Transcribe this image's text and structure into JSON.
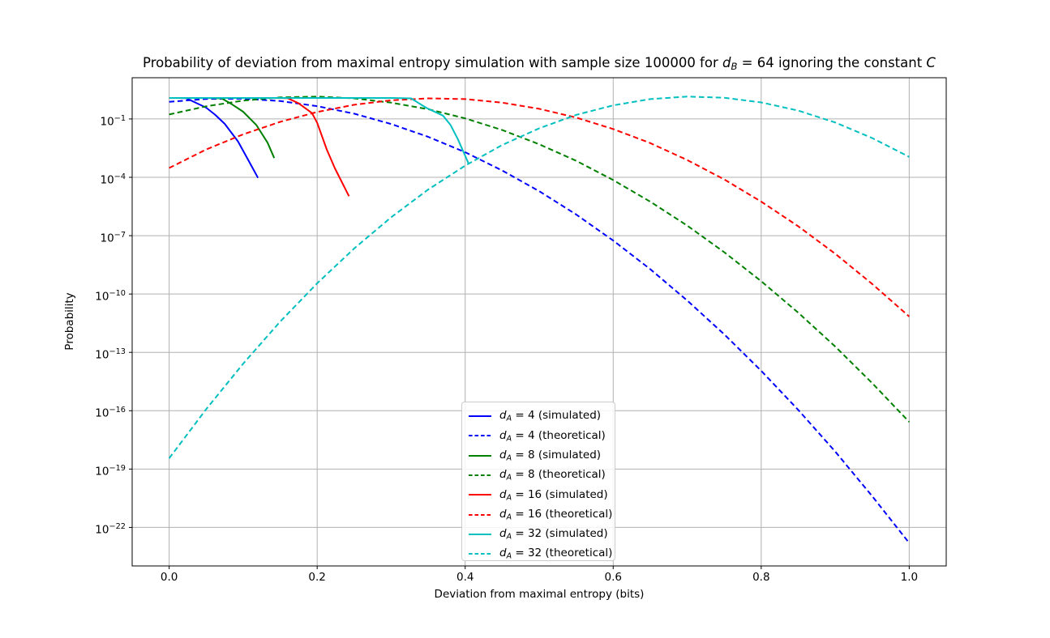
{
  "title": {
    "text": "Probability of deviation from maximal entropy simulation with sample size 100000 for d_B = 64 ignoring the constant C",
    "parts": [
      {
        "t": "Probability of deviation from maximal entropy simulation with sample size 100000 for ",
        "s": "p"
      },
      {
        "t": "d",
        "s": "i"
      },
      {
        "t": "B",
        "s": "is"
      },
      {
        "t": " = 64 ignoring the constant ",
        "s": "p"
      },
      {
        "t": "C",
        "s": "i"
      }
    ]
  },
  "axes": {
    "xlabel": "Deviation from maximal entropy (bits)",
    "ylabel": "Probability",
    "x_ticks": [
      0.0,
      0.2,
      0.4,
      0.6,
      0.8,
      1.0
    ],
    "x_tick_labels": [
      "0.0",
      "0.2",
      "0.4",
      "0.6",
      "0.8",
      "1.0"
    ],
    "y_tick_exponents": [
      -1,
      -4,
      -7,
      -10,
      -13,
      -16,
      -19,
      -22
    ],
    "xlim": [
      -0.05,
      1.05
    ],
    "ylim_log10": [
      -23.98,
      1.12
    ],
    "y_scale": "log",
    "grid": true
  },
  "colors": {
    "grid": "#b0b0b0",
    "spine": "#000000",
    "text": "#000000",
    "legend_border": "#cccccc"
  },
  "chart_data": {
    "type": "line",
    "title": "Probability of deviation from maximal entropy simulation with sample size 100000 for d_B = 64 ignoring the constant C",
    "xlabel": "Deviation from maximal entropy (bits)",
    "ylabel": "Probability",
    "x_range_shown": [
      -0.05,
      1.05
    ],
    "y_log10_range_shown": [
      -23.98,
      1.12
    ],
    "sample_size": 100000,
    "d_B": 64,
    "legend_position": "lower center",
    "points_format": "[deviation_bits, log10_probability]",
    "series": [
      {
        "id": "dA4_simulated",
        "label": "d_A = 4 (simulated)",
        "label_parts": [
          {
            "t": "d",
            "s": "i"
          },
          {
            "t": "A",
            "s": "is"
          },
          {
            "t": " = 4 (simulated)",
            "s": "p"
          }
        ],
        "color": "#0000ff",
        "style": "solid",
        "points": [
          [
            0,
            0.08
          ],
          [
            0.012,
            0.08
          ],
          [
            0.023,
            0.07
          ],
          [
            0.035,
            -0.15
          ],
          [
            0.05,
            -0.42
          ],
          [
            0.062,
            -0.78
          ],
          [
            0.075,
            -1.25
          ],
          [
            0.093,
            -2.15
          ],
          [
            0.107,
            -3.12
          ],
          [
            0.12,
            -4.03
          ]
        ]
      },
      {
        "id": "dA4_theoretical",
        "label": "d_A = 4 (theoretical)",
        "label_parts": [
          {
            "t": "d",
            "s": "i"
          },
          {
            "t": "A",
            "s": "is"
          },
          {
            "t": " = 4 (theoretical)",
            "s": "p"
          }
        ],
        "color": "#0000ff",
        "style": "dashed",
        "points": [
          [
            0,
            -0.12
          ],
          [
            0.05,
            0.03
          ],
          [
            0.1,
            0.04
          ],
          [
            0.15,
            -0.08
          ],
          [
            0.2,
            -0.34
          ],
          [
            0.25,
            -0.73
          ],
          [
            0.3,
            -1.26
          ],
          [
            0.35,
            -1.92
          ],
          [
            0.4,
            -2.71
          ],
          [
            0.45,
            -3.65
          ],
          [
            0.5,
            -4.71
          ],
          [
            0.55,
            -5.91
          ],
          [
            0.6,
            -7.25
          ],
          [
            0.65,
            -8.72
          ],
          [
            0.7,
            -10.33
          ],
          [
            0.75,
            -12.07
          ],
          [
            0.8,
            -13.95
          ],
          [
            0.85,
            -15.96
          ],
          [
            0.9,
            -18.1
          ],
          [
            0.95,
            -20.39
          ],
          [
            1.0,
            -22.8
          ]
        ]
      },
      {
        "id": "dA8_simulated",
        "label": "d_A = 8 (simulated)",
        "label_parts": [
          {
            "t": "d",
            "s": "i"
          },
          {
            "t": "A",
            "s": "is"
          },
          {
            "t": " = 8 (simulated)",
            "s": "p"
          }
        ],
        "color": "#008000",
        "style": "solid",
        "points": [
          [
            0,
            0.08
          ],
          [
            0.05,
            0.08
          ],
          [
            0.071,
            0.06
          ],
          [
            0.085,
            -0.25
          ],
          [
            0.1,
            -0.63
          ],
          [
            0.118,
            -1.32
          ],
          [
            0.133,
            -2.22
          ],
          [
            0.142,
            -3.01
          ]
        ]
      },
      {
        "id": "dA8_theoretical",
        "label": "d_A = 8 (theoretical)",
        "label_parts": [
          {
            "t": "d",
            "s": "i"
          },
          {
            "t": "A",
            "s": "is"
          },
          {
            "t": " = 8 (theoretical)",
            "s": "p"
          }
        ],
        "color": "#008000",
        "style": "dashed",
        "points": [
          [
            0,
            -0.77
          ],
          [
            0.05,
            -0.35
          ],
          [
            0.1,
            -0.06
          ],
          [
            0.15,
            0.11
          ],
          [
            0.2,
            0.15
          ],
          [
            0.25,
            0.06
          ],
          [
            0.3,
            -0.16
          ],
          [
            0.35,
            -0.5
          ],
          [
            0.4,
            -0.97
          ],
          [
            0.45,
            -1.57
          ],
          [
            0.5,
            -2.3
          ],
          [
            0.55,
            -3.15
          ],
          [
            0.6,
            -4.14
          ],
          [
            0.65,
            -5.25
          ],
          [
            0.7,
            -6.48
          ],
          [
            0.75,
            -7.85
          ],
          [
            0.8,
            -9.34
          ],
          [
            0.85,
            -10.96
          ],
          [
            0.9,
            -12.7
          ],
          [
            0.95,
            -14.58
          ],
          [
            1.0,
            -16.58
          ]
        ]
      },
      {
        "id": "dA16_simulated",
        "label": "d_A = 16 (simulated)",
        "label_parts": [
          {
            "t": "d",
            "s": "i"
          },
          {
            "t": "A",
            "s": "is"
          },
          {
            "t": " = 16 (simulated)",
            "s": "p"
          }
        ],
        "color": "#ff0000",
        "style": "solid",
        "points": [
          [
            0,
            0.08
          ],
          [
            0.14,
            0.08
          ],
          [
            0.16,
            0.07
          ],
          [
            0.175,
            -0.2
          ],
          [
            0.193,
            -0.7
          ],
          [
            0.2,
            -1.2
          ],
          [
            0.213,
            -2.57
          ],
          [
            0.224,
            -3.54
          ],
          [
            0.243,
            -4.97
          ]
        ]
      },
      {
        "id": "dA16_theoretical",
        "label": "d_A = 16 (theoretical)",
        "label_parts": [
          {
            "t": "d",
            "s": "i"
          },
          {
            "t": "A",
            "s": "is"
          },
          {
            "t": " = 16 (theoretical)",
            "s": "p"
          }
        ],
        "color": "#ff0000",
        "style": "dashed",
        "points": [
          [
            0,
            -3.52
          ],
          [
            0.05,
            -2.57
          ],
          [
            0.1,
            -1.79
          ],
          [
            0.15,
            -1.15
          ],
          [
            0.2,
            -0.64
          ],
          [
            0.25,
            -0.27
          ],
          [
            0.3,
            -0.04
          ],
          [
            0.35,
            0.06
          ],
          [
            0.4,
            0.02
          ],
          [
            0.45,
            -0.16
          ],
          [
            0.5,
            -0.48
          ],
          [
            0.55,
            -0.93
          ],
          [
            0.6,
            -1.52
          ],
          [
            0.65,
            -2.24
          ],
          [
            0.7,
            -3.11
          ],
          [
            0.75,
            -4.11
          ],
          [
            0.8,
            -5.25
          ],
          [
            0.85,
            -6.52
          ],
          [
            0.9,
            -7.93
          ],
          [
            0.95,
            -9.48
          ],
          [
            1.0,
            -11.16
          ]
        ]
      },
      {
        "id": "dA32_simulated",
        "label": "d_A = 32 (simulated)",
        "label_parts": [
          {
            "t": "d",
            "s": "i"
          },
          {
            "t": "A",
            "s": "is"
          },
          {
            "t": " = 32 (simulated)",
            "s": "p"
          }
        ],
        "color": "#00bfbf",
        "style": "solid",
        "points": [
          [
            0,
            0.08
          ],
          [
            0.3,
            0.08
          ],
          [
            0.327,
            0.06
          ],
          [
            0.347,
            -0.42
          ],
          [
            0.37,
            -0.83
          ],
          [
            0.38,
            -1.3
          ],
          [
            0.39,
            -2.03
          ],
          [
            0.405,
            -3.33
          ]
        ]
      },
      {
        "id": "dA32_theoretical",
        "label": "d_A = 32 (theoretical)",
        "label_parts": [
          {
            "t": "d",
            "s": "i"
          },
          {
            "t": "A",
            "s": "is"
          },
          {
            "t": " = 32 (theoretical)",
            "s": "p"
          }
        ],
        "color": "#00bfbf",
        "style": "dashed",
        "points": [
          [
            0,
            -18.45
          ],
          [
            0.05,
            -15.92
          ],
          [
            0.1,
            -13.58
          ],
          [
            0.15,
            -11.42
          ],
          [
            0.2,
            -9.45
          ],
          [
            0.25,
            -7.66
          ],
          [
            0.3,
            -6.05
          ],
          [
            0.35,
            -4.63
          ],
          [
            0.4,
            -3.4
          ],
          [
            0.45,
            -2.34
          ],
          [
            0.5,
            -1.48
          ],
          [
            0.55,
            -0.79
          ],
          [
            0.6,
            -0.3
          ],
          [
            0.65,
            0.02
          ],
          [
            0.7,
            0.15
          ],
          [
            0.75,
            0.09
          ],
          [
            0.8,
            -0.15
          ],
          [
            0.85,
            -0.57
          ],
          [
            0.9,
            -1.18
          ],
          [
            0.95,
            -1.98
          ],
          [
            1.0,
            -2.95
          ]
        ]
      }
    ]
  }
}
